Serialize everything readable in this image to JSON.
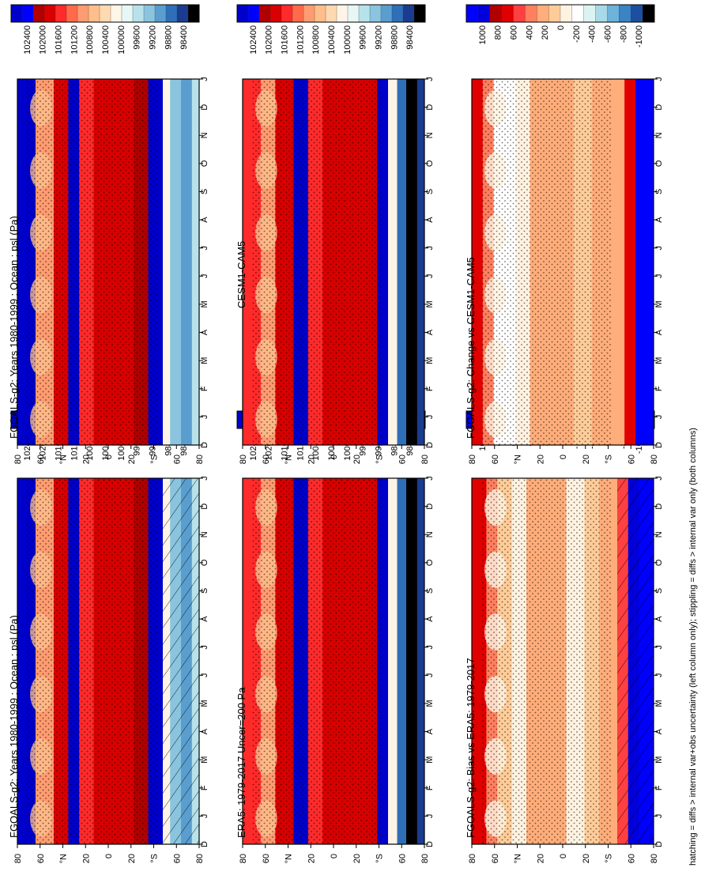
{
  "figure": {
    "footnote": "hatching = diffs > internal var+obs uncertainty (left column only); stippling = diffs > internal var only (both columns)"
  },
  "common": {
    "month_ticks": [
      "D",
      "J",
      "F",
      "M",
      "A",
      "M",
      "J",
      "J",
      "A",
      "S",
      "O",
      "N",
      "D",
      "J"
    ],
    "lat_ticks": [
      "80",
      "60",
      "°N",
      "20",
      "0",
      "20",
      "°S",
      "60",
      "80"
    ]
  },
  "colors": {
    "absolute_scale": [
      "#0000cc",
      "#0000ff",
      "#b00000",
      "#d80000",
      "#ff2a2a",
      "#ff6a4a",
      "#ff9b70",
      "#ffbe8c",
      "#ffd9b0",
      "#fff4e8",
      "#e6f7f5",
      "#b8e2ea",
      "#8ac4de",
      "#5a9ed0",
      "#2f6fb8",
      "#1a3c90",
      "#000000"
    ],
    "difference_scale": [
      "#0000ff",
      "#0000dd",
      "#b00000",
      "#e00000",
      "#ff4040",
      "#ff7f5f",
      "#ffad7a",
      "#ffcc99",
      "#fff2e0",
      "#ffffff",
      "#ddf3f2",
      "#a8d9e6",
      "#6db2da",
      "#3a83c4",
      "#1c4fa0",
      "#000000"
    ]
  },
  "panels": [
    {
      "title": "FGOALS-g2: Years 1980-1999 : Ocean : psl (Pa)",
      "position": "bottom-left",
      "colorbar": "absolute"
    },
    {
      "title": "ERA5: 1979-2017 Uncer=200 Pa",
      "position": "bottom-middle",
      "colorbar": "absolute"
    },
    {
      "title": "FGOALS-g2: Bias vs ERA5: 1979-2017",
      "position": "bottom-right",
      "colorbar": "difference"
    },
    {
      "title": "FGOALS-g2: Years 1980-1999 : Ocean : psl (Pa)",
      "position": "top-left",
      "colorbar": "absolute"
    },
    {
      "title": "CESM1-CAM5",
      "position": "top-middle",
      "colorbar": "absolute"
    },
    {
      "title": "FGOALS-g2: Change vs CESM1-CAM5",
      "position": "top-right",
      "colorbar": "difference"
    }
  ],
  "colorbars": {
    "absolute": [
      "102400",
      "102000",
      "101600",
      "101200",
      "100800",
      "100400",
      "100000",
      "99600",
      "99200",
      "98800",
      "98400"
    ],
    "difference": [
      "1000",
      "800",
      "600",
      "400",
      "200",
      "0",
      "-200",
      "-400",
      "-600",
      "-800",
      "-1000"
    ]
  },
  "chart_data": {
    "type": "heatmap",
    "variable": "psl (Pa)",
    "domain": "Ocean",
    "x_axis": "month",
    "y_axis": "latitude",
    "panels": [
      {
        "name": "FGOALS-g2: Years 1980-1999 : Ocean : psl (Pa)",
        "range_shown": [
          98400,
          102400
        ],
        "pattern": "high pressure subtropics ~101600-102000, low Southern Ocean ~99200-99600, hatching over Antarctic band"
      },
      {
        "name": "ERA5: 1979-2017 Uncer=200 Pa",
        "range_shown": [
          98400,
          102400
        ],
        "pattern": "high pressure subtropics, deep Antarctic trough ~98400-98800"
      },
      {
        "name": "FGOALS-g2: Bias vs ERA5: 1979-2017",
        "range_shown": [
          -1000,
          1000
        ],
        "pattern": "positive bias ~200-400 most latitudes, ~1000 over high southern latitudes"
      },
      {
        "name": "FGOALS-g2: Years 1980-1999 : Ocean : psl (Pa)",
        "range_shown": [
          98400,
          102400
        ],
        "pattern": "model climatology, stippled"
      },
      {
        "name": "CESM1-CAM5",
        "range_shown": [
          98400,
          102400
        ],
        "pattern": "comparison model climatology with deep trough ~98400"
      },
      {
        "name": "FGOALS-g2: Change vs CESM1-CAM5",
        "range_shown": [
          -1000,
          1000
        ],
        "pattern": "difference mostly 200-400, near 0 in northern mid-latitudes"
      }
    ],
    "colorbar_absolute_levels": [
      102400,
      102000,
      101600,
      101200,
      100800,
      100400,
      100000,
      99600,
      99200,
      98800,
      98400
    ],
    "colorbar_difference_levels": [
      1000,
      800,
      600,
      400,
      200,
      0,
      -200,
      -400,
      -600,
      -800,
      -1000
    ]
  }
}
